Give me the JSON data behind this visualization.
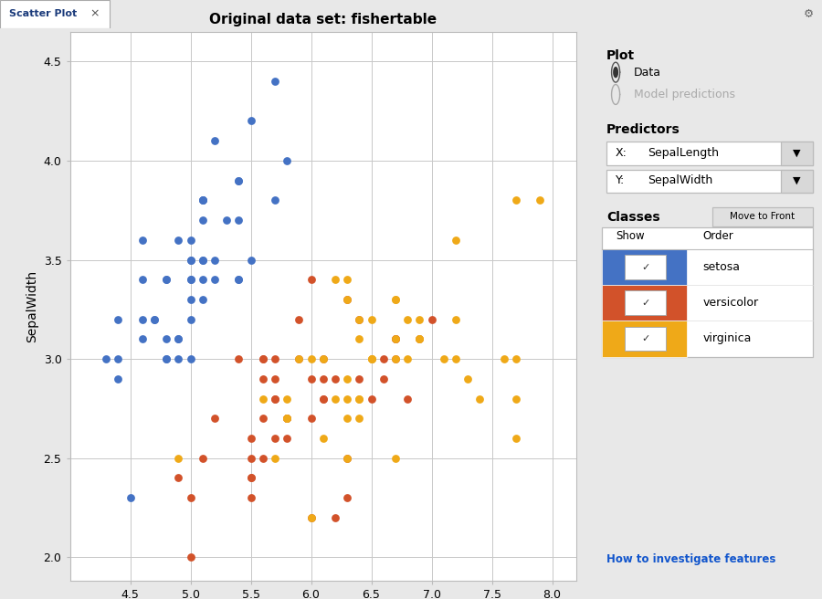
{
  "title": "Original data set: fishertable",
  "xlabel": "SepalLength",
  "ylabel": "SepalWidth",
  "xlim": [
    4.0,
    8.2
  ],
  "ylim": [
    1.88,
    4.65
  ],
  "xticks": [
    4.5,
    5.0,
    5.5,
    6.0,
    6.5,
    7.0,
    7.5,
    8.0
  ],
  "yticks": [
    2.0,
    2.5,
    3.0,
    3.5,
    4.0,
    4.5
  ],
  "setosa_color": "#4472C4",
  "versicolor_color": "#D2522A",
  "virginica_color": "#EFA918",
  "bg_color": "#E8E8E8",
  "plot_bg": "#FFFFFF",
  "marker_size": 40,
  "tab_bg": "#C8D4E8",
  "tab_text_color": "#1A3A7A",
  "sidebar_bg": "#E8E8E8",
  "setosa_sepal_length": [
    5.1,
    4.9,
    4.7,
    4.6,
    5.0,
    5.4,
    4.6,
    5.0,
    4.4,
    4.9,
    5.4,
    4.8,
    4.8,
    4.3,
    5.8,
    5.7,
    5.4,
    5.1,
    5.7,
    5.1,
    5.4,
    5.1,
    4.6,
    5.1,
    4.8,
    5.0,
    5.0,
    5.2,
    5.2,
    4.7,
    4.8,
    5.4,
    5.2,
    5.5,
    4.9,
    5.0,
    5.5,
    4.9,
    4.4,
    5.1,
    5.0,
    4.5,
    4.4,
    5.0,
    5.1,
    4.8,
    5.1,
    4.6,
    5.3,
    5.0
  ],
  "setosa_sepal_width": [
    3.5,
    3.0,
    3.2,
    3.1,
    3.6,
    3.9,
    3.4,
    3.4,
    2.9,
    3.1,
    3.7,
    3.4,
    3.0,
    3.0,
    4.0,
    4.4,
    3.9,
    3.5,
    3.8,
    3.8,
    3.4,
    3.7,
    3.6,
    3.3,
    3.4,
    3.0,
    3.4,
    3.5,
    3.4,
    3.2,
    3.1,
    3.4,
    4.1,
    4.2,
    3.1,
    3.2,
    3.5,
    3.6,
    3.0,
    3.4,
    3.5,
    2.3,
    3.2,
    3.5,
    3.8,
    3.0,
    3.8,
    3.2,
    3.7,
    3.3
  ],
  "versicolor_sepal_length": [
    7.0,
    6.4,
    6.9,
    5.5,
    6.5,
    5.7,
    6.3,
    4.9,
    6.6,
    5.2,
    5.0,
    5.9,
    6.0,
    6.1,
    5.6,
    6.7,
    5.6,
    5.8,
    6.2,
    5.6,
    5.9,
    6.1,
    6.3,
    6.1,
    6.4,
    6.6,
    6.8,
    6.7,
    6.0,
    5.7,
    5.5,
    5.5,
    5.8,
    6.0,
    5.4,
    6.0,
    6.7,
    6.3,
    5.6,
    5.5,
    5.5,
    6.1,
    5.8,
    5.0,
    5.6,
    5.7,
    5.7,
    6.2,
    5.1,
    5.7
  ],
  "versicolor_sepal_width": [
    3.2,
    3.2,
    3.1,
    2.3,
    2.8,
    2.8,
    3.3,
    2.4,
    2.9,
    2.7,
    2.0,
    3.0,
    2.2,
    2.9,
    2.9,
    3.1,
    3.0,
    2.7,
    2.2,
    2.5,
    3.2,
    2.8,
    2.5,
    2.8,
    2.9,
    3.0,
    2.8,
    3.0,
    2.9,
    2.6,
    2.4,
    2.4,
    2.7,
    2.7,
    3.0,
    3.4,
    3.1,
    2.3,
    3.0,
    2.5,
    2.6,
    3.0,
    2.6,
    2.3,
    2.7,
    3.0,
    2.9,
    2.9,
    2.5,
    2.8
  ],
  "virginica_sepal_length": [
    6.3,
    5.8,
    7.1,
    6.3,
    6.5,
    7.6,
    4.9,
    7.3,
    6.7,
    7.2,
    6.5,
    6.4,
    6.8,
    5.7,
    5.8,
    6.4,
    6.5,
    7.7,
    7.7,
    6.0,
    6.9,
    5.6,
    7.7,
    6.3,
    6.7,
    7.2,
    6.2,
    6.1,
    6.4,
    7.2,
    7.4,
    7.9,
    6.4,
    6.3,
    6.1,
    7.7,
    6.3,
    6.4,
    6.0,
    6.9,
    6.7,
    6.9,
    5.8,
    6.8,
    6.7,
    6.7,
    6.3,
    6.5,
    6.2,
    5.9
  ],
  "virginica_sepal_width": [
    3.3,
    2.7,
    3.0,
    2.9,
    3.0,
    3.0,
    2.5,
    2.9,
    2.5,
    3.6,
    3.2,
    2.7,
    3.0,
    2.5,
    2.8,
    3.2,
    3.0,
    3.8,
    2.6,
    2.2,
    3.2,
    2.8,
    2.8,
    2.7,
    3.3,
    3.2,
    2.8,
    3.0,
    2.8,
    3.0,
    2.8,
    3.8,
    2.8,
    2.8,
    2.6,
    3.0,
    3.4,
    3.1,
    3.0,
    3.1,
    3.1,
    3.1,
    2.7,
    3.2,
    3.3,
    3.0,
    2.5,
    3.0,
    3.4,
    3.0
  ]
}
